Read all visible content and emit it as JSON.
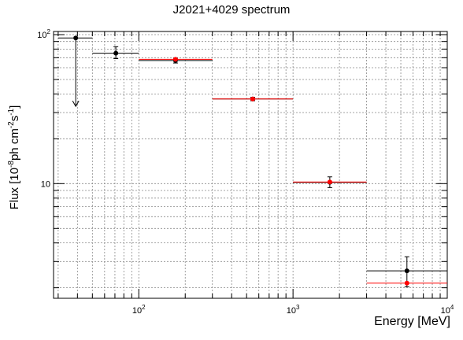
{
  "title": "J2021+4029 spectrum",
  "chart_data": {
    "type": "scatter",
    "title": "J2021+4029 spectrum",
    "xlabel": "Energy [MeV]",
    "ylabel": {
      "prefix": "Flux [10",
      "exp1": "-8",
      "mid": "ph cm",
      "exp2": "-2",
      "mid2": "s",
      "exp3": "-1",
      "suffix": "]"
    },
    "x_scale": "log",
    "y_scale": "log",
    "xlim": [
      28,
      10000
    ],
    "ylim": [
      1.7,
      105
    ],
    "grid": true,
    "x_tick_labels": [
      {
        "value": 100,
        "base": "10",
        "exp": "2"
      },
      {
        "value": 1000,
        "base": "10",
        "exp": "3"
      },
      {
        "value": 10000,
        "base": "10",
        "exp": "4"
      }
    ],
    "y_tick_labels": [
      {
        "value": 10,
        "base": "10",
        "exp": ""
      },
      {
        "value": 100,
        "base": "10",
        "exp": "2"
      }
    ],
    "series": [
      {
        "color": "#000000",
        "points": [
          {
            "x": 39,
            "y": 95,
            "xlo": 30,
            "xhi": 50,
            "upper_limit": true,
            "arrow_to": 33
          },
          {
            "x": 71,
            "y": 75,
            "xlo": 50,
            "xhi": 100,
            "ylo": 69,
            "yhi": 83
          },
          {
            "x": 173,
            "y": 67,
            "xlo": 100,
            "xhi": 300,
            "ylo": 64.5,
            "yhi": 69.5
          },
          {
            "x": 548,
            "y": 37,
            "xlo": 300,
            "xhi": 1000,
            "ylo": 36,
            "yhi": 38
          },
          {
            "x": 1732,
            "y": 10.2,
            "xlo": 1000,
            "xhi": 3000,
            "ylo": 9.4,
            "yhi": 11.1
          },
          {
            "x": 5477,
            "y": 2.6,
            "xlo": 3000,
            "xhi": 10000,
            "ylo": 2.03,
            "yhi": 3.23
          }
        ]
      },
      {
        "color": "#ff0000",
        "points": [
          {
            "x": 173,
            "y": 68.3,
            "xlo": 100,
            "xhi": 300
          },
          {
            "x": 548,
            "y": 37,
            "xlo": 300,
            "xhi": 1000
          },
          {
            "x": 1732,
            "y": 10.25,
            "xlo": 1000,
            "xhi": 3000
          },
          {
            "x": 5477,
            "y": 2.15,
            "xlo": 3000,
            "xhi": 10000
          }
        ]
      }
    ]
  }
}
